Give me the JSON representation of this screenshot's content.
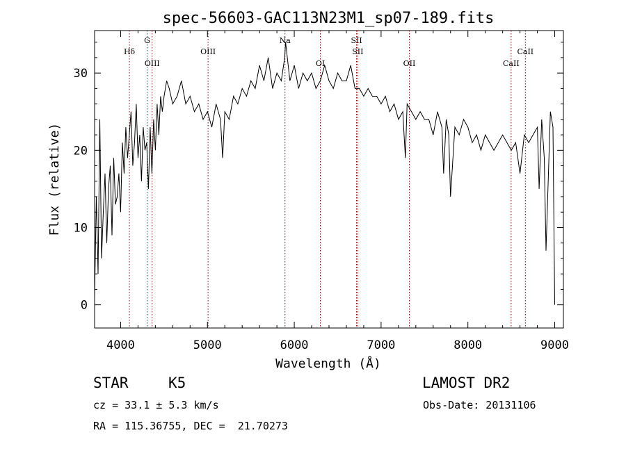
{
  "chart_data": {
    "type": "line",
    "title": "spec-56603-GAC113N23M1_sp07-189.fits",
    "xlabel": "Wavelength (Å)",
    "ylabel": "Flux (relative)",
    "xlim": [
      3700,
      9100
    ],
    "ylim": [
      -3,
      35.5
    ],
    "xticks": [
      4000,
      5000,
      6000,
      7000,
      8000,
      9000
    ],
    "yticks": [
      0,
      10,
      20,
      30
    ],
    "grid": false,
    "legend": "none",
    "series": [
      {
        "x": [
          3700,
          3720,
          3740,
          3760,
          3780,
          3800,
          3820,
          3840,
          3860,
          3880,
          3900,
          3920,
          3940,
          3960,
          3980,
          4000,
          4020,
          4040,
          4060,
          4080,
          4100,
          4120,
          4140,
          4160,
          4180,
          4200,
          4220,
          4240,
          4260,
          4280,
          4300,
          4320,
          4340,
          4360,
          4380,
          4400,
          4420,
          4440,
          4460,
          4480,
          4500,
          4530,
          4560,
          4600,
          4650,
          4700,
          4750,
          4800,
          4850,
          4900,
          4950,
          5000,
          5050,
          5100,
          5150,
          5175,
          5200,
          5250,
          5300,
          5350,
          5400,
          5450,
          5500,
          5550,
          5600,
          5650,
          5700,
          5750,
          5800,
          5850,
          5890,
          5900,
          5950,
          6000,
          6050,
          6100,
          6150,
          6200,
          6250,
          6300,
          6350,
          6400,
          6450,
          6500,
          6550,
          6600,
          6650,
          6700,
          6750,
          6800,
          6850,
          6900,
          6950,
          7000,
          7050,
          7100,
          7150,
          7200,
          7250,
          7280,
          7300,
          7350,
          7400,
          7450,
          7500,
          7550,
          7600,
          7650,
          7700,
          7720,
          7750,
          7780,
          7800,
          7850,
          7900,
          7950,
          8000,
          8050,
          8100,
          8150,
          8200,
          8250,
          8300,
          8350,
          8400,
          8450,
          8500,
          8550,
          8600,
          8650,
          8700,
          8750,
          8800,
          8820,
          8850,
          8880,
          8900,
          8950,
          8980,
          9000
        ],
        "y": [
          1,
          14,
          4,
          24,
          6,
          12,
          17,
          8,
          15,
          18,
          9,
          19,
          13,
          14,
          17,
          12,
          21,
          17,
          23,
          19,
          22,
          25,
          18,
          21,
          26,
          19,
          22,
          16,
          23,
          20,
          21,
          15,
          23,
          17,
          24,
          20,
          26,
          22,
          27,
          25,
          27,
          29,
          28,
          26,
          27,
          29,
          26,
          27,
          25,
          26,
          24,
          25,
          23,
          26,
          24,
          19,
          25,
          24,
          27,
          26,
          28,
          27,
          29,
          28,
          31,
          29,
          32,
          28,
          30,
          29,
          32,
          34,
          29,
          31,
          28,
          30,
          29,
          30,
          28,
          29,
          31,
          29,
          28,
          30,
          29,
          29,
          31,
          28,
          28,
          27,
          28,
          27,
          27,
          26,
          27,
          25,
          26,
          24,
          25,
          19,
          26,
          25,
          24,
          25,
          24,
          24,
          22,
          25,
          23,
          17,
          24,
          22,
          14,
          23,
          22,
          24,
          23,
          21,
          22,
          20,
          22,
          21,
          20,
          21,
          22,
          21,
          20,
          21,
          17,
          22,
          21,
          22,
          23,
          15,
          24,
          19,
          7,
          25,
          23,
          0
        ]
      }
    ],
    "line_markers": [
      {
        "label": "Hδ",
        "x": 4101,
        "row": 2
      },
      {
        "label": "G",
        "x": 4305,
        "row": 1
      },
      {
        "label": "OIII",
        "x": 4363,
        "row": 3
      },
      {
        "label": "OIII",
        "x": 5007,
        "row": 2
      },
      {
        "label": "Na",
        "x": 5893,
        "row": 1
      },
      {
        "label": "OI",
        "x": 6300,
        "row": 3
      },
      {
        "label": "SII",
        "x": 6717,
        "row": 1
      },
      {
        "label": "SII",
        "x": 6731,
        "row": 2
      },
      {
        "label": "OII",
        "x": 7325,
        "row": 3
      },
      {
        "label": "CaII",
        "x": 8498,
        "row": 3
      },
      {
        "label": "CaII",
        "x": 8662,
        "row": 2
      }
    ],
    "colors": {
      "spectrum": "#000000",
      "marker": "#8b0000",
      "axis": "#000000"
    }
  },
  "info": {
    "object_type": "STAR",
    "subclass": "K5",
    "cz": "cz = 33.1 ± 5.3 km/s",
    "coords": "RA = 115.36755, DEC =  21.70273",
    "survey": "LAMOST DR2",
    "obs_date": "Obs-Date: 20131106"
  }
}
